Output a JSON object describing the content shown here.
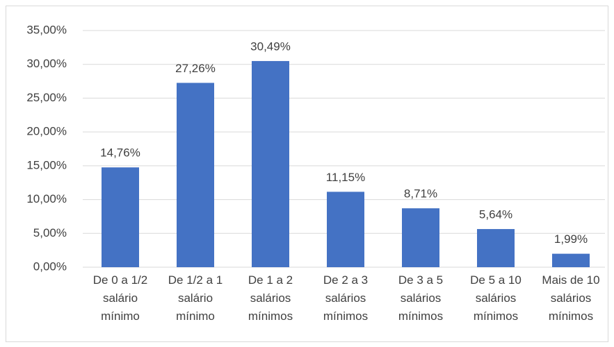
{
  "chart_data": {
    "type": "bar",
    "categories": [
      "De 0 a 1/2 salário mínimo",
      "De 1/2 a 1 salário mínimo",
      "De 1 a 2 salários mínimos",
      "De 2 a 3 salários mínimos",
      "De 3 a 5 salários mínimos",
      "De 5 a 10 salários mínimos",
      "Mais de 10 salários mínimos"
    ],
    "values": [
      14.76,
      27.26,
      30.49,
      11.15,
      8.71,
      5.64,
      1.99
    ],
    "value_labels": [
      "14,76%",
      "27,26%",
      "30,49%",
      "11,15%",
      "8,71%",
      "5,64%",
      "1,99%"
    ],
    "color": "#4472c4",
    "ylim": [
      0,
      35
    ],
    "yticks": [
      {
        "value": 0,
        "label": "0,00%"
      },
      {
        "value": 5,
        "label": "5,00%"
      },
      {
        "value": 10,
        "label": "10,00%"
      },
      {
        "value": 15,
        "label": "15,00%"
      },
      {
        "value": 20,
        "label": "20,00%"
      },
      {
        "value": 25,
        "label": "25,00%"
      },
      {
        "value": 30,
        "label": "30,00%"
      },
      {
        "value": 35,
        "label": "35,00%"
      }
    ],
    "grid": true
  }
}
